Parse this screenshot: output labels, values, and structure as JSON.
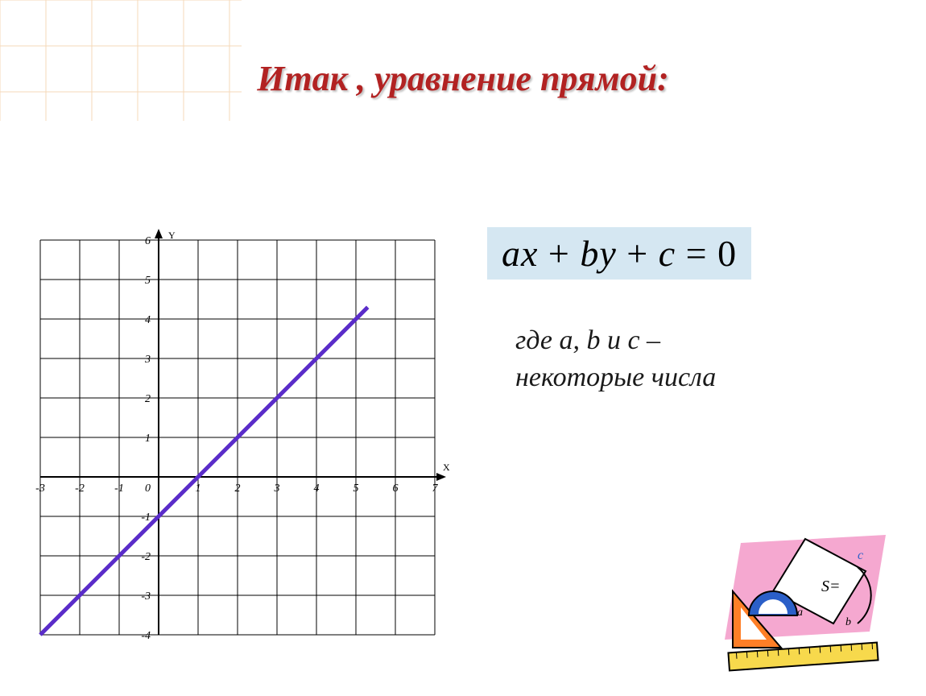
{
  "background": {
    "grid_color": "#f5d9b8",
    "grid_spacing": 57
  },
  "title": {
    "text": "Итак , уравнение прямой:",
    "color": "#b22222",
    "fontsize": 44
  },
  "equation": {
    "text_html": "<i>ax</i> <span class='plus'>+</span> <i>by</i> <span class='plus'>+</span> <i>c</i> <span class='eq'>=</span> <span class='zero'>0</span>",
    "background": "#d5e7f2",
    "fontsize": 46,
    "color": "#000000"
  },
  "subtext": {
    "line1": "где a, b и c –",
    "line2": "некоторые числа",
    "fontsize": 34
  },
  "chart": {
    "type": "line",
    "x_range": [
      -3,
      7
    ],
    "y_range": [
      -4,
      6
    ],
    "x_ticks": [
      -3,
      -2,
      -1,
      0,
      1,
      2,
      3,
      4,
      5,
      6,
      7
    ],
    "y_ticks": [
      -4,
      -3,
      -2,
      -1,
      0,
      1,
      2,
      3,
      4,
      5,
      6
    ],
    "x_labels": [
      -3,
      -2,
      -1,
      1,
      2,
      3,
      4,
      5,
      6,
      7
    ],
    "y_labels": [
      -4,
      -3,
      -2,
      -1,
      1,
      2,
      3,
      4,
      5,
      6
    ],
    "grid_color": "#000000",
    "axis_color": "#000000",
    "line_color": "#5a2cc9",
    "line_width": 5,
    "line_points": [
      [
        -3,
        -4
      ],
      [
        5.3,
        4.3
      ]
    ],
    "x_axis_label": "X",
    "y_axis_label": "Y",
    "origin_label": "0",
    "tick_fontsize": 14,
    "axis_label_fontsize": 12
  },
  "math_icon": {
    "bg_color": "#f5a8d0",
    "ruler_color": "#f7d94c",
    "triangle_color": "#ff7f27",
    "protractor_color": "#2b5fc8",
    "letters": [
      "a",
      "b",
      "c",
      "S="
    ]
  }
}
